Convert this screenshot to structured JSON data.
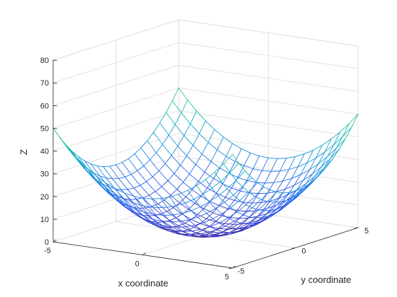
{
  "chart_data": {
    "type": "surface-mesh",
    "function": "x^2 + y^2",
    "title": "",
    "xlabel": "x coordinate",
    "ylabel": "y coordinate",
    "zlabel": "Z",
    "xlim": [
      -5,
      5
    ],
    "ylim": [
      -5,
      5
    ],
    "zlim": [
      0,
      80
    ],
    "xticks": [
      "-5",
      "0",
      "5"
    ],
    "yticks": [
      "-5",
      "0",
      "5"
    ],
    "zticks": [
      "0",
      "10",
      "20",
      "30",
      "40",
      "50",
      "60",
      "70",
      "80"
    ],
    "mesh_steps": 20,
    "grid": true,
    "box": true,
    "colormap": "parula",
    "colors": {
      "axis": "#262626",
      "grid": "#dcdcdc",
      "mesh_low": "#3d26a8",
      "mesh_high": "#f9fb0e"
    }
  }
}
